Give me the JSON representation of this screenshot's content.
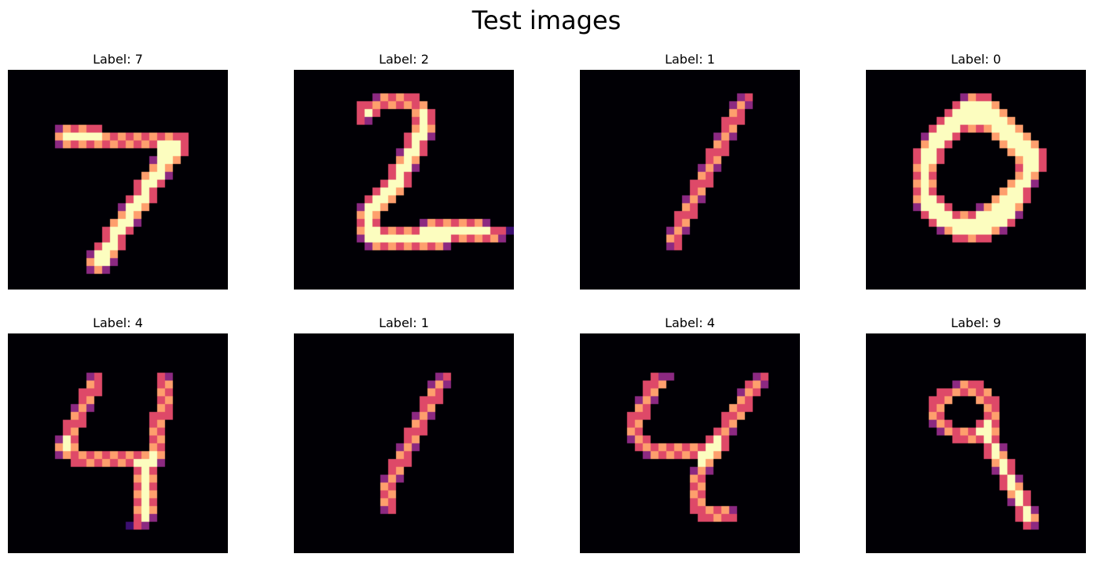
{
  "figure": {
    "title": "Test images",
    "colormap": "magma",
    "panels": [
      {
        "label": "Label: 7",
        "pixels": [
          "............................",
          "............................",
          "............................",
          "............................",
          "............................",
          "............................",
          "............................",
          "......XXXXXX................",
          "......XXXXXXXXXXXXXXXXX.....",
          "......XXXXXXXXXXXXXXXXX.....",
          "...................XXXX.....",
          "..................XXXX......",
          "..................XXX.......",
          ".................XXXX.......",
          "................XXXX........",
          "................XXX.........",
          "...............XXXX.........",
          "..............XXXX..........",
          "..............XXX...........",
          ".............XXXX...........",
          "............XXXX............",
          "............XXX.............",
          "...........XXXX.............",
          "..........XXXX..............",
          "..........XXXX..............",
          "..........XXX...............",
          "............................",
          "............................"
        ]
      },
      {
        "label": "Label: 2",
        "pixels": [
          "............................",
          "............................",
          "............................",
          "..........XXXXXX............",
          "........XXXXXXXXX...........",
          "........XXX....XXX..........",
          "........XX.....XXX..........",
          "...............XXX..........",
          "..............XXXX..........",
          "..............XXX...........",
          ".............XXXX...........",
          ".............XXX............",
          "............XXXX............",
          "............XXX.............",
          "...........XXXX.............",
          "..........XXXX..............",
          ".........XXXX...............",
          "........XXXX................",
          "........XXX.................",
          "........XXX.....XXXXXXXXX...",
          "........XXXXXXXXXXXXXXXXXXXX",
          "........XXXXXXXXXXXXXXXXXXX.",
          ".........XXXXXXXXXXX........",
          "............................",
          "............................",
          "............................",
          "............................",
          "............................"
        ]
      },
      {
        "label": "Label: 1",
        "pixels": [
          "............................",
          "............................",
          "............................",
          "....................XX......",
          "...................XXX......",
          "...................XX.......",
          "..................XXX.......",
          "..................XX........",
          ".................XXX........",
          ".................XX.........",
          "................XXX.........",
          "................XX..........",
          "...............XXX..........",
          "...............XX...........",
          "..............XXX...........",
          "..............XX............",
          ".............XXX............",
          ".............XX.............",
          "............XXX.............",
          "............XX..............",
          "...........XXX..............",
          "...........XX...............",
          "...........XX...............",
          "............................",
          "............................",
          "............................",
          "............................",
          "............................"
        ]
      },
      {
        "label": "Label: 0",
        "pixels": [
          "............................",
          "............................",
          "............................",
          "............XXXX............",
          "...........XXXXXX...........",
          "..........XXXXXXXX..........",
          ".........XXXXXXXXXX.........",
          "........XXXXXXXXXXXX........",
          ".......XXXXX....XXXXX.......",
          ".......XXXX......XXXXX......",
          "......XXXX........XXXXX.....",
          "......XXXX.........XXXX.....",
          "......XXX..........XXXX.....",
          "......XXX..........XXX......",
          "......XXX.........XXXX......",
          "......XXX........XXXX.......",
          "......XXXX......XXXXX.......",
          "......XXXXX...XXXXXX........",
          ".......XXXXXXXXXXXXX........",
          "........XXXXXXXXXXX.........",
          ".........XXXXXXXXX..........",
          "...........XXXXX............",
          "............................",
          "............................",
          "............................",
          "............................",
          "............................",
          "............................"
        ]
      },
      {
        "label": "Label: 4",
        "pixels": [
          "............................",
          "............................",
          "............................",
          "............................",
          "............................",
          "..........XX.......XX.......",
          "..........XX.......XX.......",
          ".........XXX.......XX.......",
          ".........XX........XX.......",
          "........XXX........XX.......",
          "........XX........XXX.......",
          ".......XXX........XX........",
          ".......XX.........XX........",
          "......XXX.........XX........",
          "......XXX.........XX........",
          "......XXXXXXXXXXXXXX........",
          "........XXXXXXXXXXXX........",
          "................XXX.........",
          "................XXX.........",
          "................XXX.........",
          "................XXX.........",
          "................XXX.........",
          "................XXX.........",
          "................XXX.........",
          "...............XXX..........",
          "............................",
          "............................",
          "............................"
        ]
      },
      {
        "label": "Label: 1",
        "pixels": [
          "............................",
          "............................",
          "............................",
          "............................",
          "............................",
          "..................XX........",
          ".................XXX........",
          ".................XX.........",
          "................XXX.........",
          "................XX..........",
          "...............XXX..........",
          "...............XX...........",
          "..............XXX...........",
          "..............XX............",
          ".............XXX............",
          ".............XX.............",
          "............XXX.............",
          "............XX..............",
          "...........XXX..............",
          "...........XX...............",
          "...........XX...............",
          "...........XX...............",
          "...........XX...............",
          "............................",
          "............................",
          "............................",
          "............................",
          "............................"
        ]
      },
      {
        "label": "Label: 4",
        "pixels": [
          "............................",
          "............................",
          "............................",
          "............................",
          "............................",
          ".........XXX..........XX....",
          "........XXX..........XXX....",
          "........XX..........XXX.....",
          ".......XXX..........XX......",
          ".......XX..........XXX......",
          "......XXX.........XXX.......",
          "......XX..........XX........",
          "......XX.........XXX........",
          "......XXX.......XXX.........",
          ".......XXXXXXXXXXXX.........",
          "........XXXXXXXXXX..........",
          "...............XX...........",
          "..............XXX...........",
          "..............XX............",
          "..............XX............",
          "..............XX............",
          "..............XX............",
          "..............XXXXXX........",
          "...............XXXXX........",
          "............................",
          "............................",
          "............................",
          "............................"
        ]
      },
      {
        "label": "Label: 9",
        "pixels": [
          "............................",
          "............................",
          "............................",
          "............................",
          "............................",
          "............................",
          "...........XXXX.............",
          ".........XXXXXXX............",
          "........XXX...XXX...........",
          "........XX.....XX...........",
          "........XX.....XX...........",
          "........XXX...XXX...........",
          ".........XXXXXXXX...........",
          "...........XXXXXX...........",
          "...............XXX..........",
          "...............XXX..........",
          "................XXX.........",
          "................XXX.........",
          ".................XXX........",
          ".................XXX........",
          "..................XXX.......",
          "..................XXX.......",
          "...................XXX......",
          "...................XXX......",
          "....................XX......",
          "............................",
          "............................",
          "............................"
        ]
      }
    ]
  }
}
